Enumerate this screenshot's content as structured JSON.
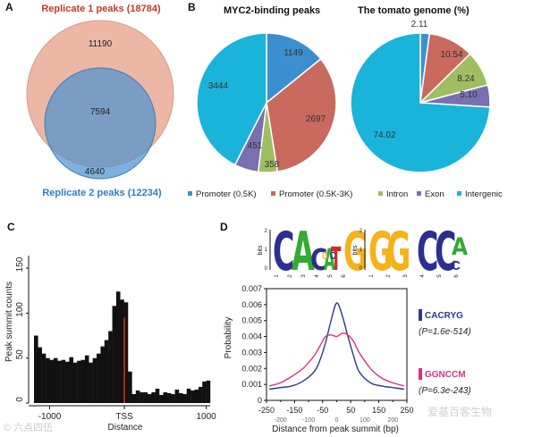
{
  "panels": {
    "a": {
      "letter": "A",
      "set1_title": "Replicate 1 peaks (18784)",
      "set2_title": "Replicate 2 peaks (12234)",
      "only1": "11190",
      "overlap": "7594",
      "only2": "4640",
      "color_set1": "#e8a590",
      "color_set2": "#4f93d0",
      "color_title1": "#c0392b",
      "color_title2": "#2f7fc3"
    },
    "b": {
      "letter": "B",
      "legend": [
        {
          "label": "Promoter (0.5K)",
          "color": "#3c8fcf"
        },
        {
          "label": "Promoter (0.5K-3K)",
          "color": "#c86a5e"
        },
        {
          "label": "Intron",
          "color": "#9fbe62"
        },
        {
          "label": "Exon",
          "color": "#7a6fb0"
        },
        {
          "label": "Intergenic",
          "color": "#1ab3d9"
        }
      ]
    },
    "c": {
      "letter": "C"
    },
    "d": {
      "letter": "D",
      "motif1_letters": [
        "C",
        "A",
        "C",
        "A",
        "T",
        "G"
      ],
      "motif2_letters": [
        "G",
        "G",
        "C",
        "C",
        "A"
      ],
      "motif_ticks1": [
        "1",
        "2",
        "3",
        "4",
        "5",
        "6"
      ],
      "motif_ticks2": [
        "1",
        "2",
        "3",
        "4",
        "5",
        "6"
      ],
      "bits_label": "bits",
      "bits_ticks": [
        "2",
        "1",
        "0"
      ],
      "legend": [
        {
          "label": "CACRYG",
          "pvalue": "(P=1.6e-514)",
          "color": "#2b3a8c"
        },
        {
          "label": "GGNCCM",
          "pvalue": "(P=6.3e-243)",
          "color": "#d6337f"
        }
      ]
    }
  },
  "watermarks": {
    "left": "© 六点四伍",
    "right": "爱基百客生物"
  },
  "chart_data": [
    {
      "type": "pie",
      "title": "MYC2-binding peaks",
      "categories": [
        "Promoter (0.5K)",
        "Promoter (0.5K-3K)",
        "Intron",
        "Exon",
        "Intergenic"
      ],
      "values": [
        1149,
        2697,
        358,
        451,
        3444
      ],
      "labels": [
        "1149",
        "2697",
        "358",
        "451",
        "3444"
      ],
      "colors": [
        "#3c8fcf",
        "#c86a5e",
        "#9fbe62",
        "#7a6fb0",
        "#1ab3d9"
      ]
    },
    {
      "type": "pie",
      "title": "The tomato genome (%)",
      "categories": [
        "Promoter (0.5K)",
        "Promoter (0.5K-3K)",
        "Intron",
        "Exon",
        "Intergenic"
      ],
      "values": [
        2.11,
        10.54,
        8.24,
        5.1,
        74.02
      ],
      "labels": [
        "2.11",
        "10.54",
        "8.24",
        "5.10",
        "74.02"
      ],
      "colors": [
        "#3c8fcf",
        "#c86a5e",
        "#9fbe62",
        "#7a6fb0",
        "#1ab3d9"
      ]
    },
    {
      "type": "bar",
      "xlabel": "Distance",
      "ylabel": "Peak summit counts",
      "ylim": [
        0,
        160
      ],
      "yticks": [
        0,
        50,
        100,
        150
      ],
      "xlim": [
        -1200,
        1050
      ],
      "xticks": [
        {
          "value": -1000,
          "label": "-1000"
        },
        {
          "value": 0,
          "label": "TSS"
        },
        {
          "value": 1000,
          "label": "1000"
        }
      ],
      "bin_width": 50,
      "x": [
        -1200,
        -1150,
        -1100,
        -1050,
        -1000,
        -950,
        -900,
        -850,
        -800,
        -750,
        -700,
        -650,
        -600,
        -550,
        -500,
        -450,
        -400,
        -350,
        -300,
        -250,
        -200,
        -150,
        -100,
        -50,
        0,
        50,
        100,
        150,
        200,
        250,
        300,
        350,
        400,
        450,
        500,
        550,
        600,
        650,
        700,
        750,
        800,
        850,
        900,
        950,
        1000
      ],
      "values": [
        75,
        62,
        55,
        50,
        48,
        50,
        47,
        48,
        46,
        51,
        45,
        47,
        48,
        53,
        45,
        50,
        55,
        63,
        70,
        80,
        108,
        124,
        115,
        112,
        35,
        10,
        14,
        12,
        12,
        10,
        12,
        16,
        9,
        12,
        11,
        10,
        15,
        11,
        10,
        16,
        14,
        15,
        18,
        24,
        25
      ],
      "tss_line": 0,
      "tss_color": "#d42b1e",
      "bar_color": "#111111"
    },
    {
      "type": "line",
      "xlabel": "Distance from peak summit (bp)",
      "ylabel": "Probability",
      "xlim": [
        -250,
        250
      ],
      "ylim": [
        0,
        0.007
      ],
      "xticks": [
        -250,
        -150,
        -50,
        50,
        150,
        250
      ],
      "xtick_labels": [
        "-250",
        "-150",
        "-50",
        "50",
        "150",
        "250"
      ],
      "xticks_minor": [
        -200,
        -100,
        0,
        100,
        200
      ],
      "xtick_labels_minor": [
        "-200",
        "-100",
        "0",
        "100",
        "200"
      ],
      "yticks": [
        0,
        0.001,
        0.002,
        0.003,
        0.004,
        0.005,
        0.006,
        0.007
      ],
      "ytick_labels": [
        "0",
        "0.001",
        "0.002",
        "0.003",
        "0.004",
        "0.005",
        "0.006",
        "0.007"
      ],
      "series": [
        {
          "name": "CACRYG",
          "color": "#2b3a8c",
          "x": [
            -240,
            -200,
            -160,
            -120,
            -80,
            -60,
            -40,
            -20,
            0,
            20,
            40,
            60,
            80,
            120,
            160,
            200,
            240
          ],
          "y": [
            0.0007,
            0.0008,
            0.0009,
            0.0012,
            0.0018,
            0.0025,
            0.0036,
            0.005,
            0.0061,
            0.0053,
            0.004,
            0.0028,
            0.0018,
            0.0011,
            0.0009,
            0.0008,
            0.0007
          ]
        },
        {
          "name": "GGNCCM",
          "color": "#d6337f",
          "x": [
            -240,
            -200,
            -160,
            -120,
            -80,
            -60,
            -40,
            -20,
            0,
            20,
            40,
            60,
            80,
            120,
            160,
            200,
            240
          ],
          "y": [
            0.0009,
            0.0011,
            0.0015,
            0.002,
            0.0028,
            0.0034,
            0.004,
            0.0041,
            0.004,
            0.0042,
            0.0041,
            0.0037,
            0.003,
            0.002,
            0.0014,
            0.0011,
            0.0009
          ]
        }
      ]
    }
  ]
}
